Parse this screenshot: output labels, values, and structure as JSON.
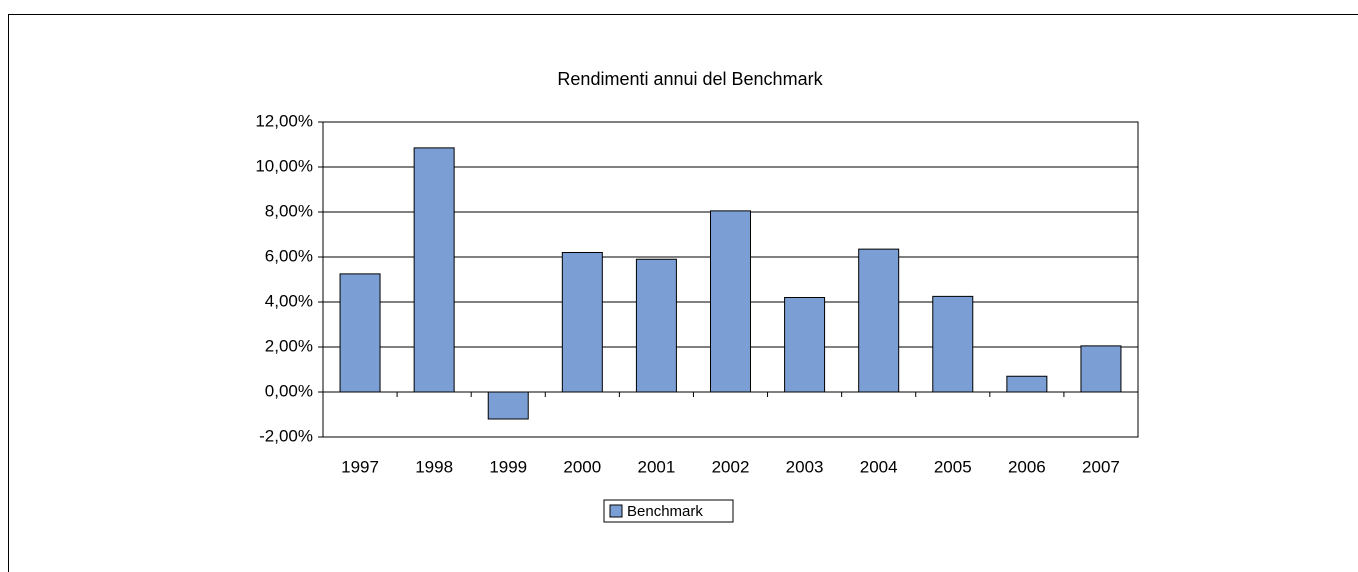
{
  "chart_data": {
    "type": "bar",
    "title": "Rendimenti annui del Benchmark",
    "categories": [
      "1997",
      "1998",
      "1999",
      "2000",
      "2001",
      "2002",
      "2003",
      "2004",
      "2005",
      "2006",
      "2007"
    ],
    "series": [
      {
        "name": "Benchmark",
        "color": "#7b9fd4",
        "values": [
          5.25,
          10.85,
          -1.2,
          6.2,
          5.9,
          8.05,
          4.2,
          6.35,
          4.25,
          0.7,
          2.05
        ]
      }
    ],
    "ylim": [
      -2,
      12
    ],
    "yticks": [
      {
        "value": -2,
        "label": "-2,00%"
      },
      {
        "value": 0,
        "label": "0,00%"
      },
      {
        "value": 2,
        "label": "2,00%"
      },
      {
        "value": 4,
        "label": "4,00%"
      },
      {
        "value": 6,
        "label": "6,00%"
      },
      {
        "value": 8,
        "label": "8,00%"
      },
      {
        "value": 10,
        "label": "10,00%"
      },
      {
        "value": 12,
        "label": "12,00%"
      }
    ],
    "grid": true,
    "legend": "bottom"
  }
}
